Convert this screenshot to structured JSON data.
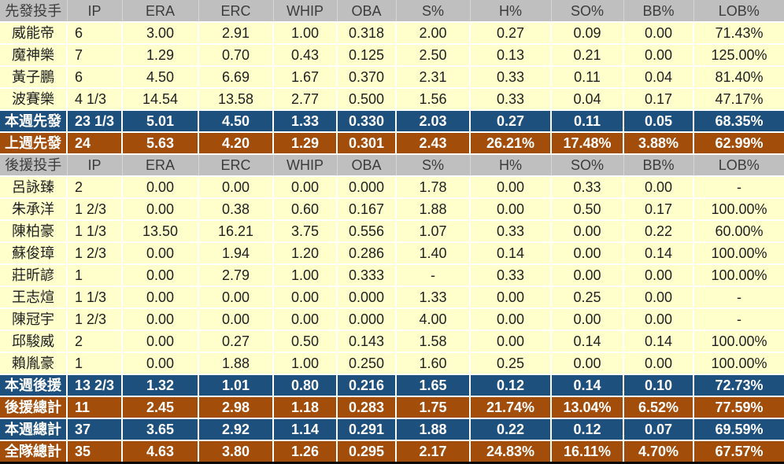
{
  "colors": {
    "section_header_bg": "#BFBFBF",
    "player_row_bg": "#FFFFCC",
    "week_row_bg": "#1E507D",
    "total_row_bg": "#A34D0A",
    "gridline": "#FFFFFF",
    "section_header_text": "#3C3C3C",
    "player_row_text": "#1F1F1F",
    "summary_row_text": "#FFFFFF",
    "bottom_border": "#0A0A0A"
  },
  "columns": [
    "IP",
    "ERA",
    "ERC",
    "WHIP",
    "OBA",
    "S%",
    "H%",
    "SO%",
    "BB%",
    "LOB%"
  ],
  "sections": [
    {
      "label": "先發投手",
      "rows": [
        {
          "label": "威能帝",
          "style": "player",
          "values": [
            "6",
            "3.00",
            "2.91",
            "1.00",
            "0.318",
            "2.00",
            "0.27",
            "0.09",
            "0.00",
            "71.43%"
          ]
        },
        {
          "label": "魔神樂",
          "style": "player",
          "values": [
            "7",
            "1.29",
            "0.70",
            "0.43",
            "0.125",
            "2.50",
            "0.13",
            "0.21",
            "0.00",
            "125.00%"
          ]
        },
        {
          "label": "黃子鵬",
          "style": "player",
          "values": [
            "6",
            "4.50",
            "6.69",
            "1.67",
            "0.370",
            "2.31",
            "0.33",
            "0.11",
            "0.04",
            "81.40%"
          ]
        },
        {
          "label": "波賽樂",
          "style": "player",
          "values": [
            "4 1/3",
            "14.54",
            "13.58",
            "2.77",
            "0.500",
            "1.56",
            "0.33",
            "0.04",
            "0.17",
            "47.17%"
          ]
        },
        {
          "label": "本週先發",
          "style": "week",
          "values": [
            "23 1/3",
            "5.01",
            "4.50",
            "1.33",
            "0.330",
            "2.03",
            "0.27",
            "0.11",
            "0.05",
            "68.35%"
          ]
        },
        {
          "label": "上週先發",
          "style": "total",
          "values": [
            "24",
            "5.63",
            "4.20",
            "1.29",
            "0.301",
            "2.43",
            "26.21%",
            "17.48%",
            "3.88%",
            "62.99%"
          ]
        }
      ]
    },
    {
      "label": "後援投手",
      "rows": [
        {
          "label": "呂詠臻",
          "style": "player",
          "values": [
            "2",
            "0.00",
            "0.00",
            "0.00",
            "0.000",
            "1.78",
            "0.00",
            "0.33",
            "0.00",
            "-"
          ]
        },
        {
          "label": "朱承洋",
          "style": "player",
          "values": [
            "1 2/3",
            "0.00",
            "0.38",
            "0.60",
            "0.167",
            "1.88",
            "0.00",
            "0.50",
            "0.17",
            "100.00%"
          ]
        },
        {
          "label": "陳柏豪",
          "style": "player",
          "values": [
            "1 1/3",
            "13.50",
            "16.21",
            "3.75",
            "0.556",
            "1.07",
            "0.33",
            "0.00",
            "0.22",
            "60.00%"
          ]
        },
        {
          "label": "蘇俊璋",
          "style": "player",
          "values": [
            "1 2/3",
            "0.00",
            "1.94",
            "1.20",
            "0.286",
            "1.40",
            "0.14",
            "0.00",
            "0.14",
            "100.00%"
          ]
        },
        {
          "label": "莊昕諺",
          "style": "player",
          "values": [
            "1",
            "0.00",
            "2.79",
            "1.00",
            "0.333",
            "-",
            "0.33",
            "0.00",
            "0.00",
            "100.00%"
          ]
        },
        {
          "label": "王志煊",
          "style": "player",
          "values": [
            "1 1/3",
            "0.00",
            "0.00",
            "0.00",
            "0.000",
            "1.33",
            "0.00",
            "0.25",
            "0.00",
            "-"
          ]
        },
        {
          "label": "陳冠宇",
          "style": "player",
          "values": [
            "1 2/3",
            "0.00",
            "0.00",
            "0.00",
            "0.000",
            "4.00",
            "0.00",
            "0.00",
            "0.00",
            "-"
          ]
        },
        {
          "label": "邱駿威",
          "style": "player",
          "values": [
            "2",
            "0.00",
            "0.27",
            "0.50",
            "0.143",
            "1.58",
            "0.00",
            "0.14",
            "0.14",
            "100.00%"
          ]
        },
        {
          "label": "賴胤豪",
          "style": "player",
          "values": [
            "1",
            "0.00",
            "1.88",
            "1.00",
            "0.250",
            "1.60",
            "0.25",
            "0.00",
            "0.00",
            "100.00%"
          ]
        },
        {
          "label": "本週後援",
          "style": "week",
          "values": [
            "13 2/3",
            "1.32",
            "1.01",
            "0.80",
            "0.216",
            "1.65",
            "0.12",
            "0.14",
            "0.10",
            "72.73%"
          ]
        },
        {
          "label": "後援總計",
          "style": "total",
          "values": [
            "11",
            "2.45",
            "2.98",
            "1.18",
            "0.283",
            "1.75",
            "21.74%",
            "13.04%",
            "6.52%",
            "77.59%"
          ]
        },
        {
          "label": "本週總計",
          "style": "week",
          "values": [
            "37",
            "3.65",
            "2.92",
            "1.14",
            "0.291",
            "1.88",
            "0.22",
            "0.12",
            "0.07",
            "69.59%"
          ]
        },
        {
          "label": "全隊總計",
          "style": "total",
          "values": [
            "35",
            "4.63",
            "3.80",
            "1.26",
            "0.295",
            "2.17",
            "24.83%",
            "16.11%",
            "4.70%",
            "67.57%"
          ]
        }
      ]
    }
  ]
}
